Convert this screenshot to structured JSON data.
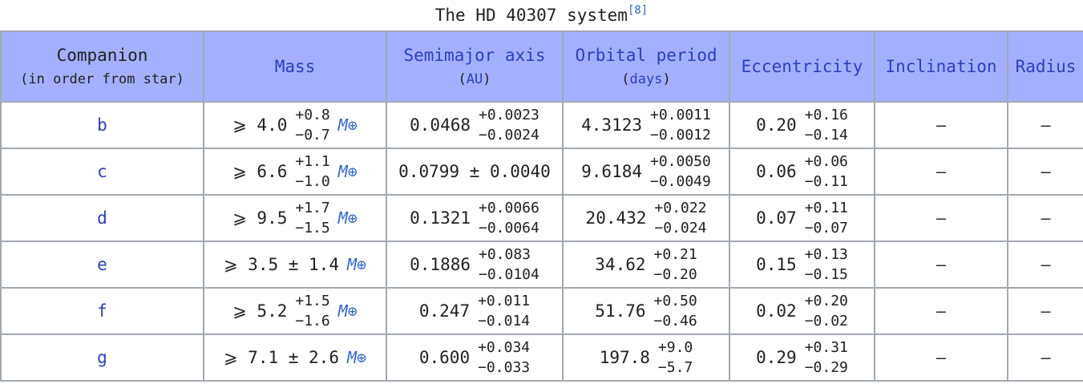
{
  "caption": {
    "text": "The HD 40307 system",
    "ref": "[8]"
  },
  "headers": {
    "companion": "Companion",
    "companion_sub": "(in order from star)",
    "mass": "Mass",
    "semimajor": "Semimajor axis",
    "semimajor_unit": "AU",
    "period": "Orbital period",
    "period_unit": "days",
    "eccentricity": "Eccentricity",
    "inclination": "Inclination",
    "radius": "Radius"
  },
  "rows": [
    {
      "name": "b",
      "mass_prefix": "⩾ 4.0",
      "mass_plus": "+0.8",
      "mass_minus": "−0.7",
      "mass_unit": "M⊕",
      "axis": "0.0468",
      "axis_plus": "+0.0023",
      "axis_minus": "−0.0024",
      "period": "4.3123",
      "period_plus": "+0.0011",
      "period_minus": "−0.0012",
      "ecc": "0.20",
      "ecc_plus": "+0.16",
      "ecc_minus": "−0.14",
      "incl": "—",
      "radius": "—"
    },
    {
      "name": "c",
      "mass_prefix": "⩾ 6.6",
      "mass_plus": "+1.1",
      "mass_minus": "−1.0",
      "mass_unit": "M⊕",
      "axis_pm": "0.0799 ± 0.0040",
      "period": "9.6184",
      "period_plus": "+0.0050",
      "period_minus": "−0.0049",
      "ecc": "0.06",
      "ecc_plus": "+0.06",
      "ecc_minus": "−0.11",
      "incl": "—",
      "radius": "—"
    },
    {
      "name": "d",
      "mass_prefix": "⩾ 9.5",
      "mass_plus": "+1.7",
      "mass_minus": "−1.5",
      "mass_unit": "M⊕",
      "axis": "0.1321",
      "axis_plus": "+0.0066",
      "axis_minus": "−0.0064",
      "period": "20.432",
      "period_plus": "+0.022",
      "period_minus": "−0.024",
      "ecc": "0.07",
      "ecc_plus": "+0.11",
      "ecc_minus": "−0.07",
      "incl": "—",
      "radius": "—"
    },
    {
      "name": "e",
      "mass_pm": "⩾ 3.5 ± 1.4",
      "mass_unit": "M⊕",
      "axis": "0.1886",
      "axis_plus": "+0.083",
      "axis_minus": "−0.0104",
      "period": "34.62",
      "period_plus": "+0.21",
      "period_minus": "−0.20",
      "ecc": "0.15",
      "ecc_plus": "+0.13",
      "ecc_minus": "−0.15",
      "incl": "—",
      "radius": "—"
    },
    {
      "name": "f",
      "mass_prefix": "⩾ 5.2",
      "mass_plus": "+1.5",
      "mass_minus": "−1.6",
      "mass_unit": "M⊕",
      "axis": "0.247",
      "axis_plus": "+0.011",
      "axis_minus": "−0.014",
      "period": "51.76",
      "period_plus": "+0.50",
      "period_minus": "−0.46",
      "ecc": "0.02",
      "ecc_plus": "+0.20",
      "ecc_minus": "−0.02",
      "incl": "—",
      "radius": "—"
    },
    {
      "name": "g",
      "mass_pm": "⩾ 7.1 ± 2.6",
      "mass_unit": "M⊕",
      "axis": "0.600",
      "axis_plus": "+0.034",
      "axis_minus": "−0.033",
      "period": "197.8",
      "period_plus": "+9.0",
      "period_minus": "−5.7",
      "ecc": "0.29",
      "ecc_plus": "+0.31",
      "ecc_minus": "−0.29",
      "incl": "—",
      "radius": "—"
    }
  ],
  "colors": {
    "header_bg": "#a4b0ff",
    "border": "#a2a9b1",
    "link": "#2a3fbf",
    "unit_link": "#3366cc"
  }
}
